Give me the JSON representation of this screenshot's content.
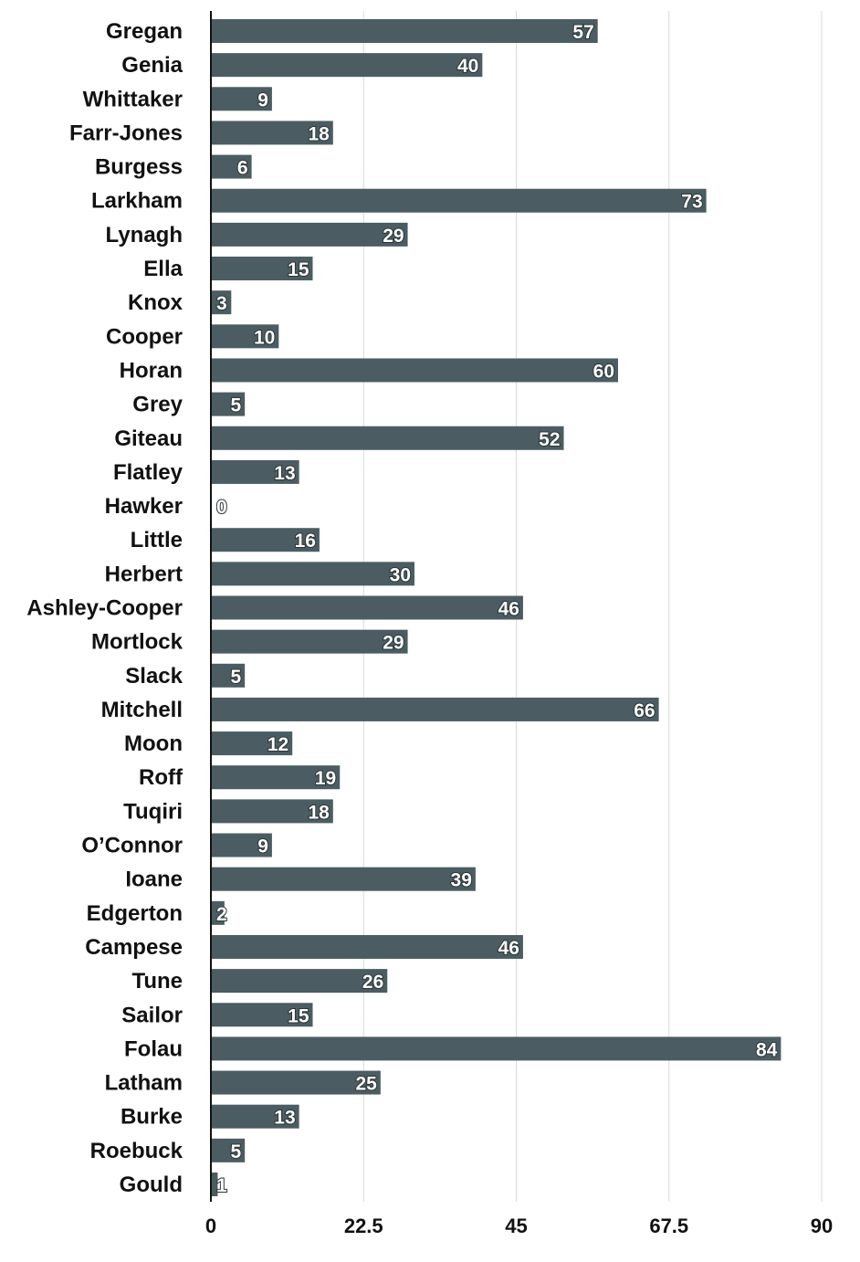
{
  "chart_data": {
    "type": "bar",
    "orientation": "horizontal",
    "title": "",
    "xlabel": "",
    "ylabel": "",
    "categories": [
      "Gregan",
      "Genia",
      "Whittaker",
      "Farr-Jones",
      "Burgess",
      "Larkham",
      "Lynagh",
      "Ella",
      "Knox",
      "Cooper",
      "Horan",
      "Grey",
      "Giteau",
      "Flatley",
      "Hawker",
      "Little",
      "Herbert",
      "Ashley-Cooper",
      "Mortlock",
      "Slack",
      "Mitchell",
      "Moon",
      "Roff",
      "Tuqiri",
      "O’Connor",
      "Ioane",
      "Edgerton",
      "Campese",
      "Tune",
      "Sailor",
      "Folau",
      "Latham",
      "Burke",
      "Roebuck",
      "Gould"
    ],
    "values": [
      57,
      40,
      9,
      18,
      6,
      73,
      29,
      15,
      3,
      10,
      60,
      5,
      52,
      13,
      0,
      16,
      30,
      46,
      29,
      5,
      66,
      12,
      19,
      18,
      9,
      39,
      2,
      46,
      26,
      15,
      84,
      25,
      13,
      5,
      1
    ],
    "xlim": [
      0,
      90
    ],
    "xticks": [
      "0",
      "22.5",
      "45",
      "67.5",
      "90"
    ],
    "xtick_values": [
      0,
      22.5,
      45,
      67.5,
      90
    ],
    "grid": "vertical",
    "legend": "none",
    "data_labels": "inside-end",
    "colors": {
      "bar": "#4b5d62",
      "grid": "#d9d9d9",
      "axis": "#111111",
      "label_text": "#ffffff"
    }
  }
}
